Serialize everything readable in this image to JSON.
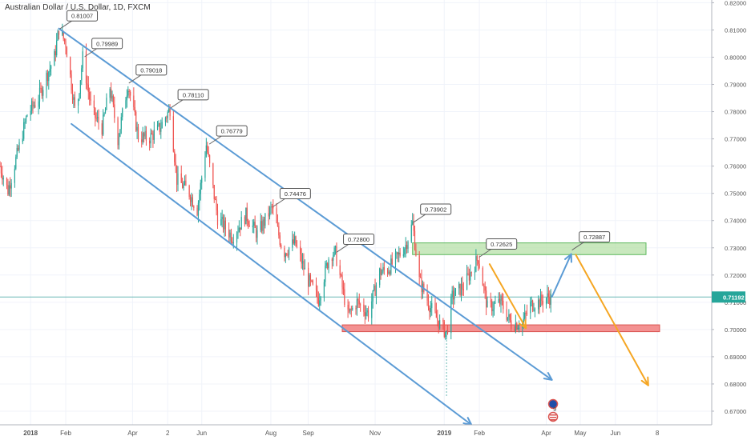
{
  "chart_data": {
    "type": "candlestick",
    "title": "Australian Dollar / U.S. Dollar, 1D, FXCM",
    "colors": {
      "up": "#26a69a",
      "down": "#ef5350",
      "channel": "#5b9bd5",
      "projection": "#f5a623",
      "resistance_fill": "#b7e0a8",
      "resistance_border": "#5cb85c",
      "support_fill": "#f28b8b",
      "support_border": "#d9534f",
      "current_line": "#6cb8b5",
      "badge": "#26a69a"
    },
    "y_axis": {
      "min": 0.665,
      "max": 0.821,
      "ticks": [
        "0.82000",
        "0.81000",
        "0.80000",
        "0.79000",
        "0.78000",
        "0.77000",
        "0.76000",
        "0.75000",
        "0.74000",
        "0.73000",
        "0.72000",
        "0.71000",
        "0.70000",
        "0.69000",
        "0.68000",
        "0.67000"
      ],
      "current_price": "0.71192"
    },
    "x_axis": {
      "range": [
        "2017-12-05",
        "2019-08-25"
      ],
      "labels": [
        {
          "text": "2018",
          "date": "2018-01-01"
        },
        {
          "text": "Feb",
          "date": "2018-02-01"
        },
        {
          "text": "Apr",
          "date": "2018-04-01"
        },
        {
          "text": "2",
          "date": "2018-05-02"
        },
        {
          "text": "Jun",
          "date": "2018-06-01"
        },
        {
          "text": "Aug",
          "date": "2018-08-01"
        },
        {
          "text": "Sep",
          "date": "2018-09-03"
        },
        {
          "text": "Nov",
          "date": "2018-11-01"
        },
        {
          "text": "2019",
          "date": "2019-01-01"
        },
        {
          "text": "Feb",
          "date": "2019-02-01"
        },
        {
          "text": "Apr",
          "date": "2019-04-01"
        },
        {
          "text": "May",
          "date": "2019-05-01"
        },
        {
          "text": "Jun",
          "date": "2019-06-01"
        },
        {
          "text": "8",
          "date": "2019-07-08"
        }
      ]
    },
    "price_path": [
      [
        "2017-12-05",
        0.76
      ],
      [
        "2017-12-12",
        0.751
      ],
      [
        "2017-12-20",
        0.764
      ],
      [
        "2017-12-29",
        0.779
      ],
      [
        "2018-01-08",
        0.785
      ],
      [
        "2018-01-15",
        0.793
      ],
      [
        "2018-01-22",
        0.8
      ],
      [
        "2018-01-26",
        0.8105
      ],
      [
        "2018-02-01",
        0.805
      ],
      [
        "2018-02-06",
        0.79
      ],
      [
        "2018-02-10",
        0.778
      ],
      [
        "2018-02-16",
        0.7999
      ],
      [
        "2018-02-24",
        0.78
      ],
      [
        "2018-03-05",
        0.774
      ],
      [
        "2018-03-12",
        0.789
      ],
      [
        "2018-03-19",
        0.77
      ],
      [
        "2018-03-28",
        0.7902
      ],
      [
        "2018-04-06",
        0.771
      ],
      [
        "2018-04-15",
        0.77
      ],
      [
        "2018-04-25",
        0.774
      ],
      [
        "2018-05-04",
        0.7811
      ],
      [
        "2018-05-10",
        0.755
      ],
      [
        "2018-05-20",
        0.751
      ],
      [
        "2018-05-28",
        0.744
      ],
      [
        "2018-06-05",
        0.7678
      ],
      [
        "2018-06-15",
        0.741
      ],
      [
        "2018-06-28",
        0.734
      ],
      [
        "2018-07-10",
        0.742
      ],
      [
        "2018-07-20",
        0.735
      ],
      [
        "2018-08-02",
        0.7448
      ],
      [
        "2018-08-12",
        0.728
      ],
      [
        "2018-08-22",
        0.732
      ],
      [
        "2018-09-03",
        0.718
      ],
      [
        "2018-09-12",
        0.711
      ],
      [
        "2018-09-22",
        0.728
      ],
      [
        "2018-09-27",
        0.728
      ],
      [
        "2018-10-08",
        0.705
      ],
      [
        "2018-10-16",
        0.71
      ],
      [
        "2018-10-26",
        0.706
      ],
      [
        "2018-11-05",
        0.721
      ],
      [
        "2018-11-12",
        0.722
      ],
      [
        "2018-11-20",
        0.726
      ],
      [
        "2018-11-28",
        0.731
      ],
      [
        "2018-12-04",
        0.739
      ],
      [
        "2018-12-10",
        0.718
      ],
      [
        "2018-12-20",
        0.708
      ],
      [
        "2018-12-28",
        0.702
      ],
      [
        "2019-01-03",
        0.6985
      ],
      [
        "2019-01-08",
        0.712
      ],
      [
        "2019-01-18",
        0.716
      ],
      [
        "2019-01-31",
        0.7263
      ],
      [
        "2019-02-08",
        0.708
      ],
      [
        "2019-02-20",
        0.71
      ],
      [
        "2019-03-01",
        0.702
      ],
      [
        "2019-03-11",
        0.7025
      ],
      [
        "2019-03-18",
        0.709
      ],
      [
        "2019-03-25",
        0.71
      ],
      [
        "2019-04-03",
        0.712
      ],
      [
        "2019-04-05",
        0.7115
      ]
    ],
    "price_labels": [
      {
        "text": "0.81007",
        "date": "2018-01-26",
        "value": 0.81007
      },
      {
        "text": "0.79989",
        "date": "2018-02-17",
        "value": 0.79989
      },
      {
        "text": "0.79018",
        "date": "2018-03-28",
        "value": 0.79018
      },
      {
        "text": "0.78110",
        "date": "2018-05-04",
        "value": 0.7811
      },
      {
        "text": "0.76779",
        "date": "2018-06-07",
        "value": 0.76779
      },
      {
        "text": "0.74476",
        "date": "2018-08-02",
        "value": 0.74476
      },
      {
        "text": "0.72800",
        "date": "2018-09-27",
        "value": 0.728
      },
      {
        "text": "0.73902",
        "date": "2018-12-04",
        "value": 0.73902
      },
      {
        "text": "0.72625",
        "date": "2019-01-31",
        "value": 0.72625
      },
      {
        "text": "0.72887",
        "date": "2019-04-23",
        "value": 0.72887
      }
    ],
    "channel_lines": [
      {
        "from": [
          "2018-01-26",
          0.8105
        ],
        "to": [
          "2019-04-06",
          0.6815
        ],
        "arrow": true
      },
      {
        "from": [
          "2018-02-06",
          0.7755
        ],
        "to": [
          "2019-01-25",
          0.665
        ],
        "arrow": true
      }
    ],
    "zones": [
      {
        "name": "resistance",
        "from": "2018-12-04",
        "to": "2019-06-28",
        "top": 0.7318,
        "bottom": 0.7275
      },
      {
        "name": "support",
        "from": "2018-10-03",
        "to": "2019-07-10",
        "top": 0.7017,
        "bottom": 0.6992
      }
    ],
    "projections": [
      {
        "color": "channel",
        "points": [
          [
            "2019-04-06",
            0.712
          ],
          [
            "2019-04-23",
            0.7277
          ]
        ]
      },
      {
        "color": "projection",
        "points": [
          [
            "2019-02-10",
            0.724
          ],
          [
            "2019-03-14",
            0.7005
          ]
        ]
      },
      {
        "color": "projection",
        "points": [
          [
            "2019-04-27",
            0.7275
          ],
          [
            "2019-06-30",
            0.6795
          ]
        ]
      }
    ],
    "markers": {
      "dashed_vertical": {
        "date": "2019-01-03",
        "from": 0.6985,
        "to": 0.6755
      },
      "event_badge": {
        "date": "2019-04-07",
        "text": "9"
      }
    }
  }
}
